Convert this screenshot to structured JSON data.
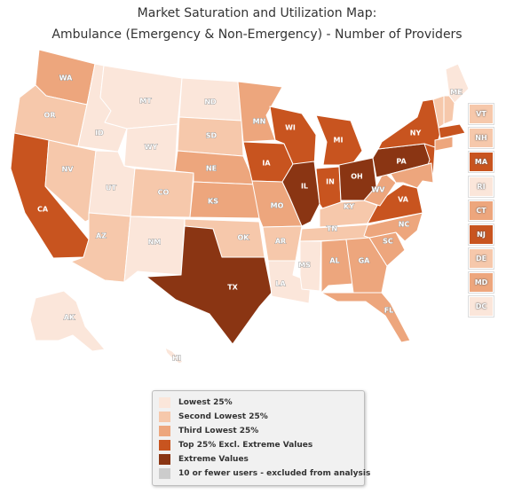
{
  "title": {
    "line1": "Market Saturation and Utilization Map:",
    "line2": "Ambulance (Emergency & Non-Emergency) - Number of Providers"
  },
  "colors": {
    "lowest": "#fbe6da",
    "second": "#f6c8ab",
    "third": "#eda67d",
    "top": "#c8541f",
    "extreme": "#8a3513",
    "excluded": "#cccccc"
  },
  "legend": [
    {
      "label": "Lowest 25%",
      "color_key": "lowest"
    },
    {
      "label": "Second Lowest 25%",
      "color_key": "second"
    },
    {
      "label": "Third Lowest 25%",
      "color_key": "third"
    },
    {
      "label": "Top 25% Excl. Extreme Values",
      "color_key": "top"
    },
    {
      "label": "Extreme Values",
      "color_key": "extreme"
    },
    {
      "label": "10 or fewer users - excluded from analysis",
      "color_key": "excluded"
    }
  ],
  "states": {
    "WA": "third",
    "OR": "second",
    "CA": "top",
    "ID": "lowest",
    "NV": "second",
    "MT": "lowest",
    "WY": "lowest",
    "UT": "lowest",
    "AZ": "second",
    "NM": "lowest",
    "CO": "second",
    "ND": "lowest",
    "SD": "second",
    "NE": "third",
    "KS": "third",
    "OK": "second",
    "TX": "extreme",
    "MN": "third",
    "IA": "top",
    "MO": "third",
    "AR": "second",
    "LA": "lowest",
    "WI": "top",
    "IL": "extreme",
    "MS": "lowest",
    "MI": "top",
    "IN": "top",
    "OH": "extreme",
    "KY": "second",
    "TN": "second",
    "AL": "third",
    "GA": "third",
    "FL": "third",
    "SC": "third",
    "NC": "third",
    "VA": "top",
    "WV": "third",
    "PA": "extreme",
    "NY": "top",
    "ME": "lowest",
    "AK": "lowest",
    "HI": "lowest"
  },
  "small_states": [
    {
      "code": "VT",
      "color_key": "second"
    },
    {
      "code": "NH",
      "color_key": "second"
    },
    {
      "code": "MA",
      "color_key": "top"
    },
    {
      "code": "RI",
      "color_key": "lowest"
    },
    {
      "code": "CT",
      "color_key": "third"
    },
    {
      "code": "NJ",
      "color_key": "top"
    },
    {
      "code": "DE",
      "color_key": "second"
    },
    {
      "code": "MD",
      "color_key": "third"
    },
    {
      "code": "DC",
      "color_key": "lowest"
    }
  ]
}
